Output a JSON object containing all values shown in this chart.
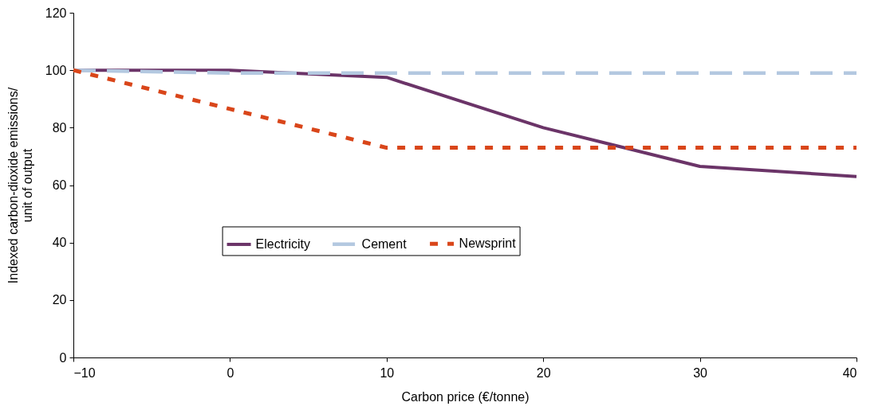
{
  "chart_data": {
    "type": "line",
    "xlabel": "Carbon price (€/tonne)",
    "ylabel": "Indexed carbon-dioxide emissions/\nunit of output",
    "x": [
      -10,
      0,
      10,
      20,
      30,
      40
    ],
    "xlim": [
      -10,
      40
    ],
    "xticks": [
      -10,
      0,
      10,
      20,
      30,
      40
    ],
    "ylim": [
      0,
      120
    ],
    "yticks": [
      0,
      20,
      40,
      60,
      80,
      100,
      120
    ],
    "grid": false,
    "legend": "left",
    "marker": "none",
    "series": [
      {
        "name": "Electricity",
        "color": "#6b3468",
        "line_style": "solid",
        "values": [
          100,
          100,
          97.5,
          80,
          66.5,
          63
        ]
      },
      {
        "name": "Cement",
        "color": "#b3c8e0",
        "line_style": "dashed",
        "values": [
          100,
          99,
          99,
          99,
          99,
          99
        ]
      },
      {
        "name": "Newsprint",
        "color": "#d9461a",
        "line_style": "dotted",
        "values": [
          100,
          86.5,
          73,
          73,
          73,
          73
        ]
      }
    ]
  }
}
